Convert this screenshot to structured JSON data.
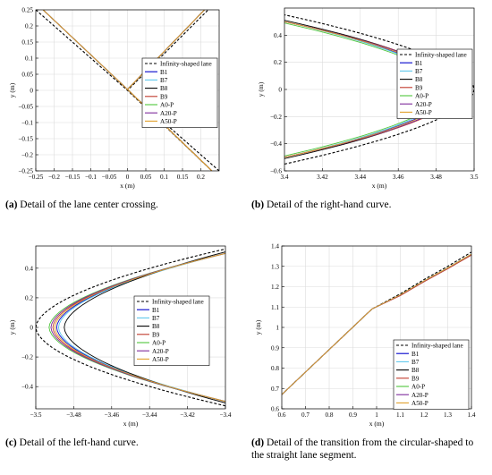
{
  "chart_data": [
    {
      "type": "line",
      "xlabel": "x (m)",
      "ylabel": "y (m)",
      "xlim": [
        -0.25,
        0.25
      ],
      "ylim": [
        -0.25,
        0.25
      ],
      "xticks": [
        -0.25,
        -0.2,
        -0.15,
        -0.1,
        -0.05,
        0,
        0.05,
        0.1,
        0.15,
        0.2
      ],
      "xtick_labels": [
        "−0.25",
        "−0.2",
        "−0.15",
        "−0.1",
        "−0.05",
        "0",
        "0.05",
        "0.1",
        "0.15",
        "0.2"
      ],
      "yticks": [
        -0.25,
        -0.2,
        -0.15,
        -0.1,
        -0.05,
        0,
        0.05,
        0.1,
        0.15,
        0.2,
        0.25
      ],
      "ytick_labels": [
        "−0.25",
        "−0.2",
        "−0.15",
        "−0.1",
        "−0.05",
        "0",
        "0.05",
        "0.1",
        "0.15",
        "0.2",
        "0.25"
      ],
      "grid": true,
      "legend_position": "right",
      "caption_tag": "(a)",
      "caption_text": " Detail of the lane center crossing.",
      "series": [
        {
          "name": "Infinity-shaped lane",
          "color": "#000000",
          "dashed": true,
          "x": [
            -0.25,
            0,
            0.22
          ],
          "y": [
            0.25,
            0,
            0.25
          ]
        },
        {
          "name": "B1",
          "color": "#0000cc",
          "x": [
            -0.23,
            0,
            0.21
          ],
          "y": [
            0.25,
            0.003,
            0.25
          ]
        },
        {
          "name": "B7",
          "color": "#5ec8ec",
          "x": [
            -0.23,
            0,
            0.21
          ],
          "y": [
            0.25,
            0.003,
            0.25
          ]
        },
        {
          "name": "B8",
          "color": "#000000",
          "x": [
            -0.23,
            0,
            0.21
          ],
          "y": [
            0.25,
            0.003,
            0.25
          ]
        },
        {
          "name": "B9",
          "color": "#c0392b",
          "x": [
            -0.23,
            0,
            0.21
          ],
          "y": [
            0.25,
            0.003,
            0.25
          ]
        },
        {
          "name": "A0-P",
          "color": "#4fc63b",
          "x": [
            -0.23,
            0,
            0.21
          ],
          "y": [
            0.25,
            0.003,
            0.25
          ]
        },
        {
          "name": "A20-P",
          "color": "#7d2a9a",
          "x": [
            -0.23,
            0,
            0.21
          ],
          "y": [
            0.25,
            0.003,
            0.25
          ]
        },
        {
          "name": "A50-P",
          "color": "#e0a02a",
          "x": [
            -0.23,
            0,
            0.21
          ],
          "y": [
            0.25,
            0.003,
            0.25
          ]
        }
      ]
    },
    {
      "type": "line",
      "xlabel": "x (m)",
      "ylabel": "y (m)",
      "xlim": [
        3.4,
        3.5
      ],
      "ylim": [
        -0.6,
        0.6
      ],
      "xticks": [
        3.4,
        3.42,
        3.44,
        3.46,
        3.48,
        3.5
      ],
      "xtick_labels": [
        "3.4",
        "3.42",
        "3.44",
        "3.46",
        "3.48",
        "3.5"
      ],
      "yticks": [
        -0.6,
        -0.4,
        -0.2,
        0,
        0.2,
        0.4
      ],
      "ytick_labels": [
        "−0.6",
        "−0.4",
        "−0.2",
        "0",
        "0.2",
        "0.4"
      ],
      "grid": true,
      "legend_position": "right",
      "caption_tag": "(b)",
      "caption_text": " Detail of the right-hand curve.",
      "series": [
        {
          "name": "Infinity-shaped lane",
          "color": "#000000",
          "dashed": true,
          "apex": 3.5,
          "y_end": 0.55,
          "x_end": 3.4
        },
        {
          "name": "B1",
          "color": "#0000cc",
          "apex": 3.489,
          "y_end": 0.5,
          "x_end": 3.4
        },
        {
          "name": "B7",
          "color": "#5ec8ec",
          "apex": 3.487,
          "y_end": 0.5,
          "x_end": 3.4
        },
        {
          "name": "B8",
          "color": "#000000",
          "apex": 3.491,
          "y_end": 0.51,
          "x_end": 3.4
        },
        {
          "name": "B9",
          "color": "#c0392b",
          "apex": 3.493,
          "y_end": 0.5,
          "x_end": 3.4
        },
        {
          "name": "A0-P",
          "color": "#4fc63b",
          "apex": 3.486,
          "y_end": 0.49,
          "x_end": 3.4
        },
        {
          "name": "A20-P",
          "color": "#7d2a9a",
          "apex": 3.492,
          "y_end": 0.5,
          "x_end": 3.4
        },
        {
          "name": "A50-P",
          "color": "#e0a02a",
          "apex": 3.49,
          "y_end": 0.5,
          "x_end": 3.4
        }
      ]
    },
    {
      "type": "line",
      "xlabel": "x (m)",
      "ylabel": "y (m)",
      "xlim": [
        -3.5,
        -3.4
      ],
      "ylim": [
        -0.55,
        0.55
      ],
      "xticks": [
        -3.5,
        -3.48,
        -3.46,
        -3.44,
        -3.42,
        -3.4
      ],
      "xtick_labels": [
        "−3.5",
        "−3.48",
        "−3.46",
        "−3.44",
        "−3.42",
        "−3.4"
      ],
      "yticks": [
        -0.4,
        -0.2,
        0,
        0.2,
        0.4
      ],
      "ytick_labels": [
        "−0.4",
        "−0.2",
        "0",
        "0.2",
        "0.4"
      ],
      "grid": true,
      "legend_position": "right",
      "caption_tag": "(c)",
      "caption_text": " Detail of the left-hand curve.",
      "series": [
        {
          "name": "Infinity-shaped lane",
          "color": "#000000",
          "dashed": true,
          "apex": -3.5,
          "y_end": 0.53,
          "x_end": -3.4
        },
        {
          "name": "B1",
          "color": "#0000cc",
          "apex": -3.489,
          "y_end": 0.5,
          "x_end": -3.4
        },
        {
          "name": "B7",
          "color": "#5ec8ec",
          "apex": -3.488,
          "y_end": 0.5,
          "x_end": -3.4
        },
        {
          "name": "B8",
          "color": "#000000",
          "apex": -3.485,
          "y_end": 0.51,
          "x_end": -3.4
        },
        {
          "name": "B9",
          "color": "#c0392b",
          "apex": -3.491,
          "y_end": 0.5,
          "x_end": -3.4
        },
        {
          "name": "A0-P",
          "color": "#4fc63b",
          "apex": -3.493,
          "y_end": 0.5,
          "x_end": -3.4
        },
        {
          "name": "A20-P",
          "color": "#7d2a9a",
          "apex": -3.492,
          "y_end": 0.5,
          "x_end": -3.4
        },
        {
          "name": "A50-P",
          "color": "#e0a02a",
          "apex": -3.49,
          "y_end": 0.5,
          "x_end": -3.4
        }
      ]
    },
    {
      "type": "line",
      "xlabel": "x (m)",
      "ylabel": "y (m)",
      "xlim": [
        0.6,
        1.4
      ],
      "ylim": [
        0.6,
        1.4
      ],
      "xticks": [
        0.6,
        0.7,
        0.8,
        0.9,
        1,
        1.1,
        1.2,
        1.3,
        1.4
      ],
      "xtick_labels": [
        "0.6",
        "0.7",
        "0.8",
        "0.9",
        "1",
        "1.1",
        "1.2",
        "1.3",
        "1.4"
      ],
      "yticks": [
        0.6,
        0.7,
        0.8,
        0.9,
        1,
        1.1,
        1.2,
        1.3,
        1.4
      ],
      "ytick_labels": [
        "0.6",
        "0.7",
        "0.8",
        "0.9",
        "1",
        "1.1",
        "1.2",
        "1.3",
        "1.4"
      ],
      "grid": true,
      "legend_position": "bottom-right",
      "caption_tag": "(d)",
      "caption_text": " Detail of the transition from the circular-shaped to the straight lane segment.",
      "series": [
        {
          "name": "Infinity-shaped lane",
          "color": "#000000",
          "dashed": true,
          "x": [
            0.6,
            0.98,
            1.1,
            1.2,
            1.3,
            1.4
          ],
          "y": [
            0.67,
            1.09,
            1.165,
            1.235,
            1.3,
            1.37
          ]
        },
        {
          "name": "B1",
          "color": "#0000cc",
          "x": [
            0.6,
            0.98,
            1.1,
            1.2,
            1.3,
            1.4
          ],
          "y": [
            0.67,
            1.09,
            1.16,
            1.228,
            1.292,
            1.36
          ]
        },
        {
          "name": "B7",
          "color": "#5ec8ec",
          "x": [
            0.6,
            0.98,
            1.1,
            1.2,
            1.3,
            1.4
          ],
          "y": [
            0.67,
            1.09,
            1.16,
            1.228,
            1.292,
            1.36
          ]
        },
        {
          "name": "B8",
          "color": "#000000",
          "x": [
            0.6,
            0.98,
            1.1,
            1.2,
            1.3,
            1.4
          ],
          "y": [
            0.67,
            1.09,
            1.158,
            1.226,
            1.29,
            1.358
          ]
        },
        {
          "name": "B9",
          "color": "#c0392b",
          "x": [
            0.6,
            0.98,
            1.1,
            1.2,
            1.3,
            1.4
          ],
          "y": [
            0.67,
            1.09,
            1.156,
            1.224,
            1.288,
            1.355
          ]
        },
        {
          "name": "A0-P",
          "color": "#4fc63b",
          "x": [
            0.6,
            0.98,
            1.1,
            1.2,
            1.3,
            1.4
          ],
          "y": [
            0.67,
            1.09,
            1.16,
            1.228,
            1.292,
            1.36
          ]
        },
        {
          "name": "A20-P",
          "color": "#7d2a9a",
          "x": [
            0.6,
            0.98,
            1.1,
            1.2,
            1.3,
            1.4
          ],
          "y": [
            0.67,
            1.09,
            1.159,
            1.227,
            1.291,
            1.359
          ]
        },
        {
          "name": "A50-P",
          "color": "#e0a02a",
          "x": [
            0.6,
            0.98,
            1.1,
            1.2,
            1.3,
            1.4
          ],
          "y": [
            0.67,
            1.09,
            1.16,
            1.228,
            1.292,
            1.36
          ]
        }
      ]
    }
  ]
}
